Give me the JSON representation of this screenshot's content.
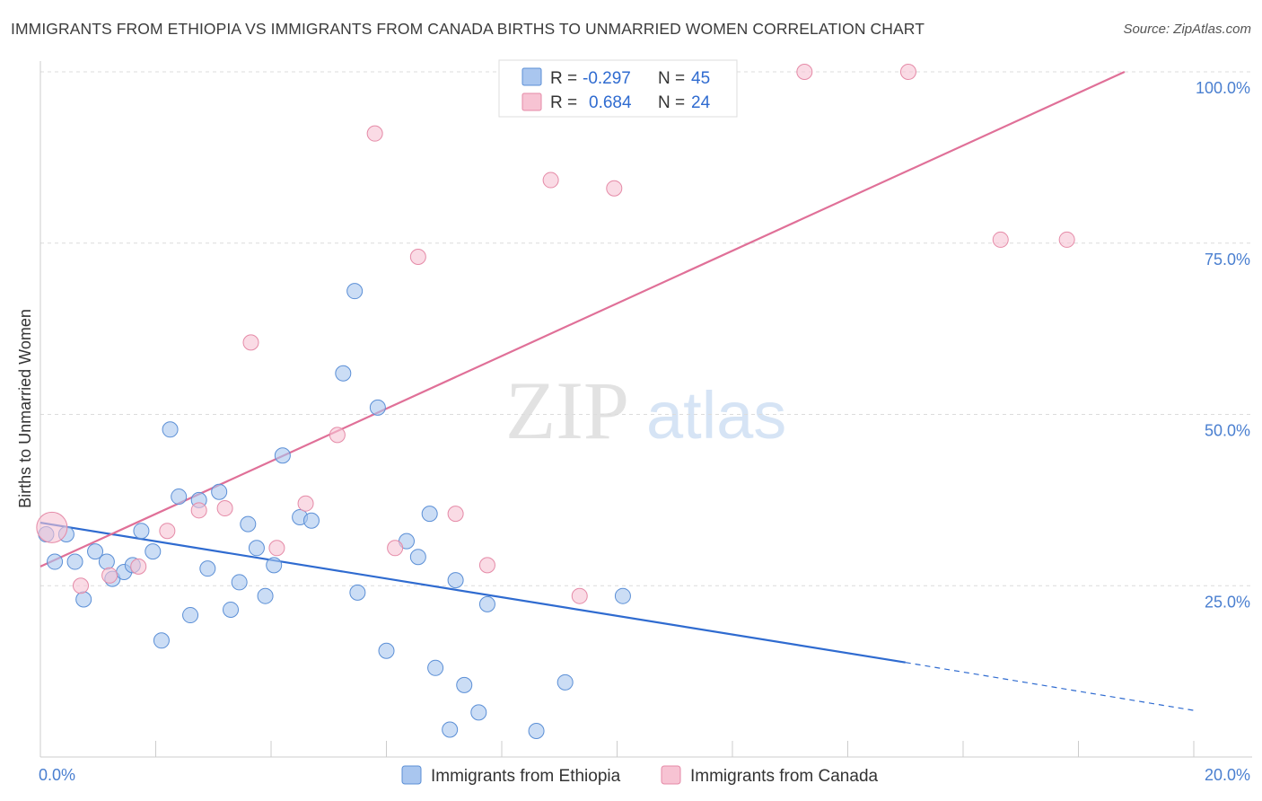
{
  "title": "IMMIGRANTS FROM ETHIOPIA VS IMMIGRANTS FROM CANADA BIRTHS TO UNMARRIED WOMEN CORRELATION CHART",
  "source": "Source: ZipAtlas.com",
  "watermark": {
    "zip": "ZIP",
    "atlas": "atlas"
  },
  "chart_data": {
    "type": "scatter",
    "ylabel": "Births to Unmarried Women",
    "xlim": [
      0,
      20
    ],
    "ylim": [
      0,
      100
    ],
    "x_tick_labels": [
      {
        "value": 0,
        "label": "0.0%"
      },
      {
        "value": 20,
        "label": "20.0%"
      }
    ],
    "y_tick_labels": [
      {
        "value": 100,
        "label": "100.0%"
      },
      {
        "value": 75,
        "label": "75.0%"
      },
      {
        "value": 50,
        "label": "50.0%"
      },
      {
        "value": 25,
        "label": "25.0%"
      }
    ],
    "grid": true,
    "legend_placement": "top-center",
    "series": [
      {
        "name": "Immigrants from Ethiopia",
        "color": "#a9c6ef",
        "stroke": "#5b8fd6",
        "line_color": "#2f6bd0",
        "R": "-0.297",
        "N": "45",
        "trend": {
          "x0": 0,
          "y0": 34.2,
          "x1": 15.0,
          "y1": 13.8,
          "dash_to_x": 20,
          "dash_to_y": 6.8
        },
        "points": [
          [
            0.1,
            32.5
          ],
          [
            0.45,
            32.5
          ],
          [
            0.25,
            28.5
          ],
          [
            0.6,
            28.5
          ],
          [
            0.75,
            23.0
          ],
          [
            0.95,
            30.0
          ],
          [
            1.15,
            28.5
          ],
          [
            1.25,
            26.0
          ],
          [
            1.45,
            27.0
          ],
          [
            1.6,
            28.0
          ],
          [
            1.75,
            33.0
          ],
          [
            1.95,
            30.0
          ],
          [
            2.1,
            17.0
          ],
          [
            2.25,
            47.8
          ],
          [
            2.4,
            38.0
          ],
          [
            2.6,
            20.7
          ],
          [
            2.75,
            37.5
          ],
          [
            2.9,
            27.5
          ],
          [
            3.1,
            38.7
          ],
          [
            3.3,
            21.5
          ],
          [
            3.45,
            25.5
          ],
          [
            3.6,
            34.0
          ],
          [
            3.75,
            30.5
          ],
          [
            3.9,
            23.5
          ],
          [
            4.05,
            28.0
          ],
          [
            4.2,
            44.0
          ],
          [
            4.5,
            35.0
          ],
          [
            4.7,
            34.5
          ],
          [
            5.25,
            56.0
          ],
          [
            5.45,
            68.0
          ],
          [
            5.5,
            24.0
          ],
          [
            5.85,
            51.0
          ],
          [
            6.0,
            15.5
          ],
          [
            6.35,
            31.5
          ],
          [
            6.55,
            29.2
          ],
          [
            6.75,
            35.5
          ],
          [
            6.85,
            13.0
          ],
          [
            7.1,
            4.0
          ],
          [
            7.2,
            25.8
          ],
          [
            7.35,
            10.5
          ],
          [
            7.6,
            6.5
          ],
          [
            7.75,
            22.3
          ],
          [
            8.6,
            3.8
          ],
          [
            9.1,
            10.9
          ],
          [
            10.1,
            23.5
          ]
        ]
      },
      {
        "name": "Immigrants from Canada",
        "color": "#f7c3d3",
        "stroke": "#e58aa7",
        "line_color": "#e07098",
        "R": "0.684",
        "N": "24",
        "trend": {
          "x0": 0,
          "y0": 27.8,
          "x1": 18.8,
          "y1": 100.0
        },
        "points": [
          [
            0.2,
            33.5
          ],
          [
            0.7,
            25.0
          ],
          [
            1.2,
            26.5
          ],
          [
            1.7,
            27.8
          ],
          [
            2.2,
            33.0
          ],
          [
            2.75,
            36.0
          ],
          [
            3.2,
            36.3
          ],
          [
            3.65,
            60.5
          ],
          [
            4.1,
            30.5
          ],
          [
            4.6,
            37.0
          ],
          [
            5.15,
            47.0
          ],
          [
            5.8,
            91.0
          ],
          [
            6.15,
            30.5
          ],
          [
            6.55,
            73.0
          ],
          [
            7.2,
            35.5
          ],
          [
            7.75,
            28.0
          ],
          [
            8.85,
            84.2
          ],
          [
            9.35,
            23.5
          ],
          [
            9.95,
            83.0
          ],
          [
            13.25,
            100.0
          ],
          [
            15.05,
            100.0
          ],
          [
            16.65,
            75.5
          ],
          [
            17.8,
            75.5
          ],
          [
            10.0,
            100.0
          ]
        ]
      }
    ]
  }
}
